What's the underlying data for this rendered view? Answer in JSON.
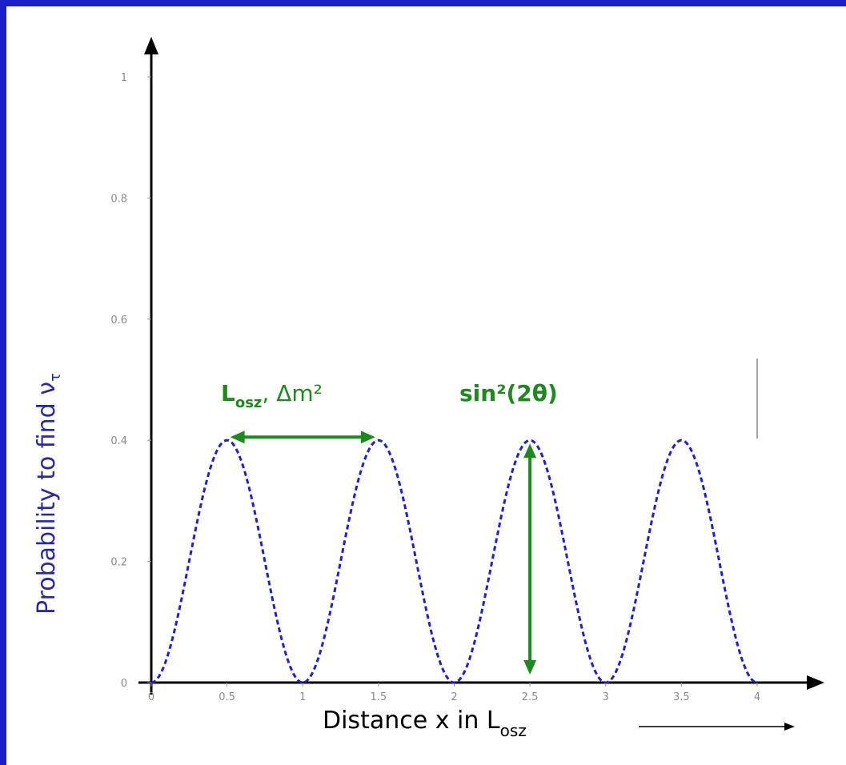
{
  "chart_data": {
    "type": "line",
    "title": "",
    "xlabel_main": "Distance x in L",
    "xlabel_sub": "osz",
    "ylabel_main": "Probability to find ν",
    "ylabel_sub": "τ",
    "xlim": [
      0,
      4
    ],
    "ylim": [
      0,
      1
    ],
    "x_ticks": [
      "0",
      "0.5",
      "1",
      "1.5",
      "2",
      "2.5",
      "3",
      "3.5",
      "4"
    ],
    "y_ticks": [
      "0",
      "0.2",
      "0.4",
      "0.6",
      "0.8",
      "1"
    ],
    "grid": false,
    "series": [
      {
        "style": "dashed",
        "color": "#1f1fd6",
        "formula": "0.4*sin^2(pi*x)",
        "amplitude": 0.4,
        "period": 1,
        "x": [
          0,
          0.25,
          0.5,
          0.75,
          1,
          1.25,
          1.5,
          1.75,
          2,
          2.25,
          2.5,
          2.75,
          3,
          3.25,
          3.5,
          3.75,
          4
        ],
        "y": [
          0,
          0.2,
          0.4,
          0.2,
          0,
          0.2,
          0.4,
          0.2,
          0,
          0.2,
          0.4,
          0.2,
          0,
          0.2,
          0.4,
          0.2,
          0
        ]
      }
    ],
    "annotations": {
      "period_label_main": "L",
      "period_label_sub": "osz",
      "period_label_rest": ",  Δm²",
      "period_arrow_x": [
        0.5,
        1.5
      ],
      "period_arrow_y": 0.4,
      "amplitude_label": "sin²(2θ)",
      "amplitude_arrow_x": 2.5,
      "amplitude_arrow_y": [
        0,
        0.4
      ],
      "color": "#1e8a1e"
    }
  }
}
